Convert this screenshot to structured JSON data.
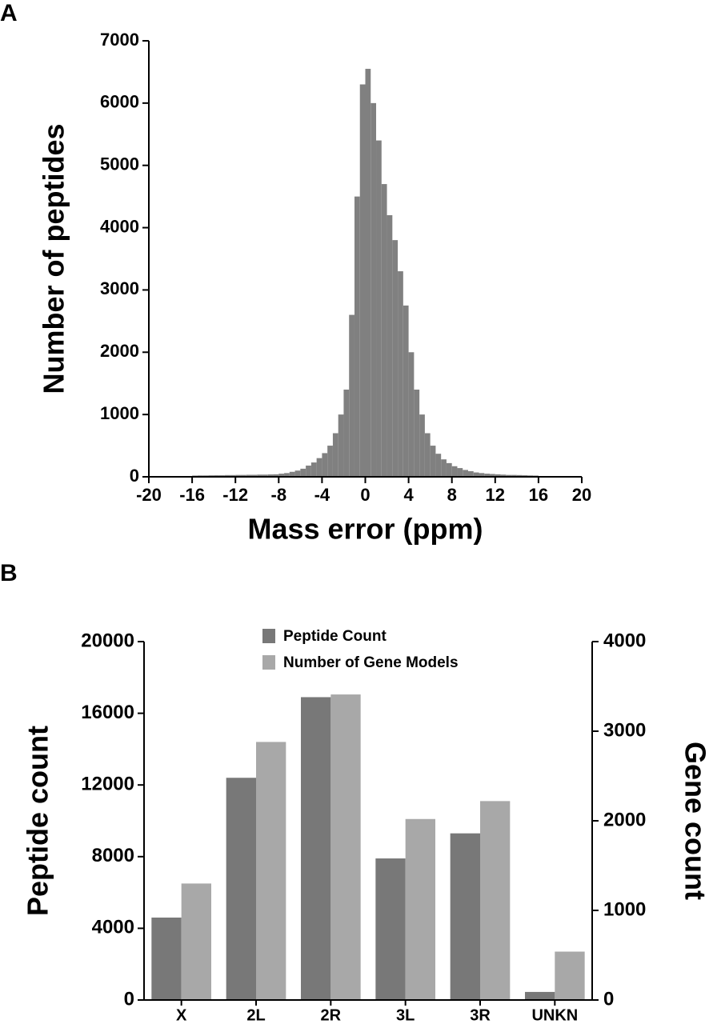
{
  "chart_data": [
    {
      "type": "histogram",
      "panel": "A",
      "xlabel": "Mass error (ppm)",
      "ylabel": "Number of peptides",
      "color": "#808080",
      "bins": [
        -20,
        -19.5,
        -19,
        -18.5,
        -18,
        -17.5,
        -17,
        -16.5,
        -16,
        -15.5,
        -15,
        -14.5,
        -14,
        -13.5,
        -13,
        -12.5,
        -12,
        -11.5,
        -11,
        -10.5,
        -10,
        -9.5,
        -9,
        -8.5,
        -8,
        -7.5,
        -7,
        -6.5,
        -6,
        -5.5,
        -5,
        -4.5,
        -4,
        -3.5,
        -3,
        -2.5,
        -2,
        -1.5,
        -1,
        -0.5,
        0,
        0.5,
        1,
        1.5,
        2,
        2.5,
        3,
        3.5,
        4,
        4.5,
        5,
        5.5,
        6,
        6.5,
        7,
        7.5,
        8,
        8.5,
        9,
        9.5,
        10,
        10.5,
        11,
        11.5,
        12,
        12.5,
        13,
        13.5,
        14,
        14.5,
        15,
        15.5,
        16,
        16.5,
        17,
        17.5,
        18,
        18.5,
        19,
        19.5,
        20
      ],
      "values": [
        5,
        5,
        5,
        5,
        5,
        5,
        8,
        8,
        20,
        22,
        22,
        24,
        25,
        25,
        28,
        28,
        30,
        30,
        32,
        32,
        35,
        35,
        38,
        40,
        50,
        60,
        80,
        100,
        130,
        180,
        230,
        300,
        380,
        500,
        700,
        1000,
        1400,
        2600,
        4500,
        6300,
        6550,
        6000,
        5400,
        4700,
        4200,
        3800,
        3300,
        2750,
        2000,
        1400,
        1000,
        700,
        500,
        370,
        280,
        220,
        170,
        140,
        110,
        90,
        70,
        60,
        50,
        45,
        40,
        35,
        30,
        30,
        28,
        25,
        22,
        20,
        5,
        5,
        5,
        5,
        5,
        5,
        5,
        5
      ],
      "xlim": [
        -20,
        20
      ],
      "xticks": [
        -20,
        -16,
        -12,
        -8,
        -4,
        0,
        4,
        8,
        12,
        16,
        20
      ],
      "ylim": [
        0,
        7000
      ],
      "yticks": [
        0,
        1000,
        2000,
        3000,
        4000,
        5000,
        6000,
        7000
      ]
    },
    {
      "type": "bar",
      "panel": "B",
      "ylabel": "Peptide count",
      "y2label": "Gene count",
      "categories": [
        "X",
        "2L",
        "2R",
        "3L",
        "3R",
        "UNKN"
      ],
      "series": [
        {
          "name": "Peptide Count",
          "color": "#787878",
          "values": [
            4600,
            12400,
            16900,
            7900,
            9300,
            450
          ]
        },
        {
          "name": "Number of Gene Models",
          "color": "#a8a8a8",
          "axis": "y2",
          "values": [
            1300,
            2880,
            3410,
            2020,
            2220,
            540
          ]
        }
      ],
      "ylim": [
        0,
        20000
      ],
      "yticks": [
        0,
        4000,
        8000,
        12000,
        16000,
        20000
      ],
      "y2lim": [
        0,
        4000
      ],
      "y2ticks": [
        0,
        1000,
        2000,
        3000,
        4000
      ]
    }
  ]
}
